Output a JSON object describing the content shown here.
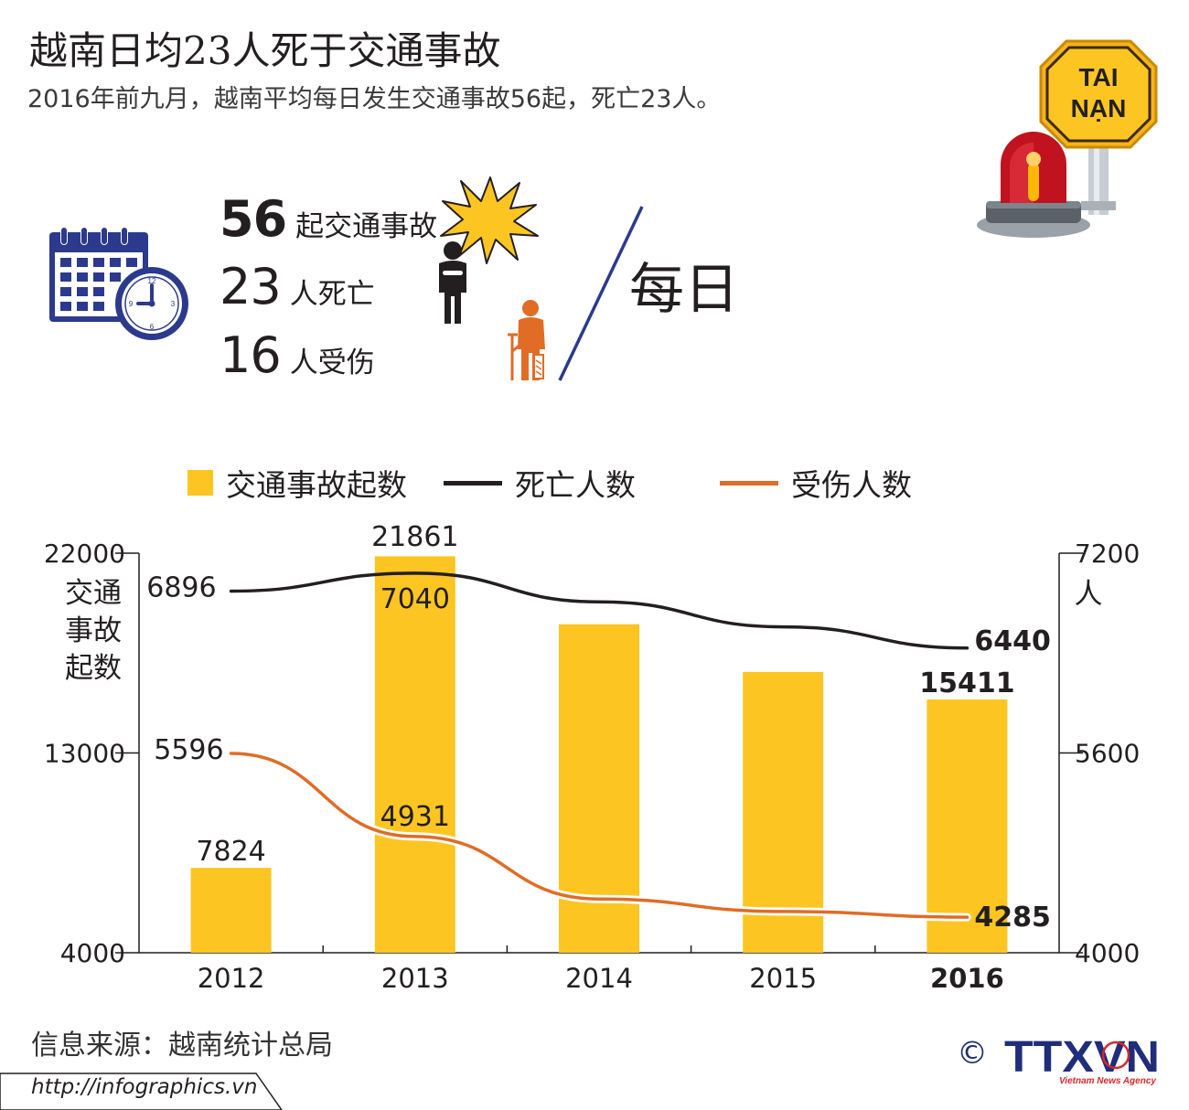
{
  "header": {
    "title": "越南日均23人死于交通事故",
    "subtitle": "2016年前九月，越南平均每日发生交通事故56起，死亡23人。"
  },
  "sign": {
    "line1": "TAI",
    "line2": "NẠN"
  },
  "stats": [
    {
      "value": "56",
      "unit": "起交通事故"
    },
    {
      "value": "23",
      "unit": "人死亡"
    },
    {
      "value": "16",
      "unit": "人受伤"
    }
  ],
  "daily_label": "每日",
  "colors": {
    "bar": "#fdc521",
    "deaths": "#231f20",
    "injuries": "#e06c26",
    "accent": "#2b3a8c"
  },
  "legend": {
    "accidents": "交通事故起数",
    "deaths": "死亡人数",
    "injuries": "受伤人数"
  },
  "chart_data": {
    "type": "bar",
    "categories": [
      "2012",
      "2013",
      "2014",
      "2015",
      "2016"
    ],
    "series": [
      {
        "name": "交通事故起数",
        "type": "bar",
        "axis": "left",
        "values": [
          7824,
          21861,
          18800,
          16650,
          15411
        ],
        "labels": [
          "7824",
          "21861",
          "",
          "",
          "15411"
        ]
      },
      {
        "name": "死亡人数",
        "type": "line",
        "axis": "right",
        "values": [
          6896,
          7040,
          6810,
          6610,
          6440
        ],
        "labels": [
          "6896",
          "7040",
          "",
          "",
          "6440"
        ]
      },
      {
        "name": "受伤人数",
        "type": "line",
        "axis": "right",
        "values": [
          5596,
          4931,
          4430,
          4330,
          4285
        ],
        "labels": [
          "5596",
          "4931",
          "",
          "",
          "4285"
        ]
      }
    ],
    "left_axis": {
      "label_lines": [
        "交通",
        "事故",
        "起数"
      ],
      "ticks": [
        "22000",
        "13000",
        "4000"
      ],
      "min": 4000,
      "max": 22000
    },
    "right_axis": {
      "label": "人",
      "ticks": [
        "7200",
        "5600",
        "4000"
      ],
      "min": 4000,
      "max": 7200
    },
    "highlight_category": "2016"
  },
  "footer": {
    "source": "信息来源：越南统计总局",
    "url": "http://infographics.vn",
    "copyright": "©",
    "agency": "TTXVN",
    "agency_sub": "Vietnam News Agency"
  }
}
